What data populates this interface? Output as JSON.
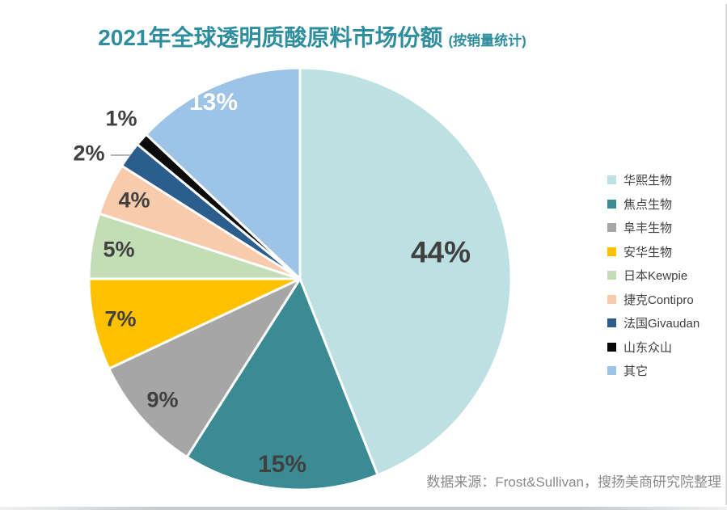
{
  "header": {
    "title": "2021年全球透明质酸原料市场份额",
    "subtitle": "(按销量统计)",
    "title_color": "#2F8E9E"
  },
  "footer": {
    "source_note": "数据来源：Frost&Sullivan，搜扬美商研究院整理",
    "color": "#8A8A8A"
  },
  "legend": {
    "text_color": "#404040",
    "position": "right"
  },
  "chart_data": {
    "type": "pie",
    "title": "2021年全球透明质酸原料市场份额 (按销量统计)",
    "unit": "percent of global hyaluronic acid raw material sales volume",
    "start_angle_deg": 0,
    "direction": "clockwise",
    "legend_position": "right",
    "series": [
      {
        "name": "华熙生物",
        "value": 44,
        "label": "44%",
        "color": "#BDE0E3",
        "label_color": "#404040",
        "label_r": 0.68,
        "label_size": 37
      },
      {
        "name": "焦点生物",
        "value": 15,
        "label": "15%",
        "color": "#3B8B95",
        "label_color": "#404040",
        "label_r": 0.885,
        "label_size": 30
      },
      {
        "name": "阜丰生物",
        "value": 9,
        "label": "9%",
        "color": "#A6A6A6",
        "label_color": "#404040",
        "label_r": 0.87,
        "label_size": 27
      },
      {
        "name": "安华生物",
        "value": 7,
        "label": "7%",
        "color": "#FFC000",
        "label_color": "#404040",
        "label_r": 0.87,
        "label_size": 27
      },
      {
        "name": "日本Kewpie",
        "value": 5,
        "label": "5%",
        "color": "#C3DEB6",
        "label_color": "#404040",
        "label_r": 0.87,
        "label_size": 27
      },
      {
        "name": "捷克Contipro",
        "value": 4,
        "label": "4%",
        "color": "#F8CBAD",
        "label_color": "#404040",
        "label_r": 0.87,
        "label_size": 27
      },
      {
        "name": "法国Givaudan",
        "value": 2,
        "label": "2%",
        "color": "#2B5D8D",
        "label_color": "#404040",
        "label_size": 27,
        "label_xy": [
          110,
          190
        ],
        "leader_line": [
          137,
          192,
          162,
          192
        ]
      },
      {
        "name": "山东众山",
        "value": 1,
        "label": "1%",
        "color": "#0A0A0A",
        "label_color": "#404040",
        "label_size": 27,
        "label_xy": [
          150,
          147
        ]
      },
      {
        "name": "其它",
        "value": 13,
        "label": "13%",
        "color": "#9DC3E6",
        "label_color": "#FFFFFF",
        "label_r": 0.92,
        "label_dx": -12,
        "label_dy": 2,
        "label_size": 30
      }
    ]
  }
}
